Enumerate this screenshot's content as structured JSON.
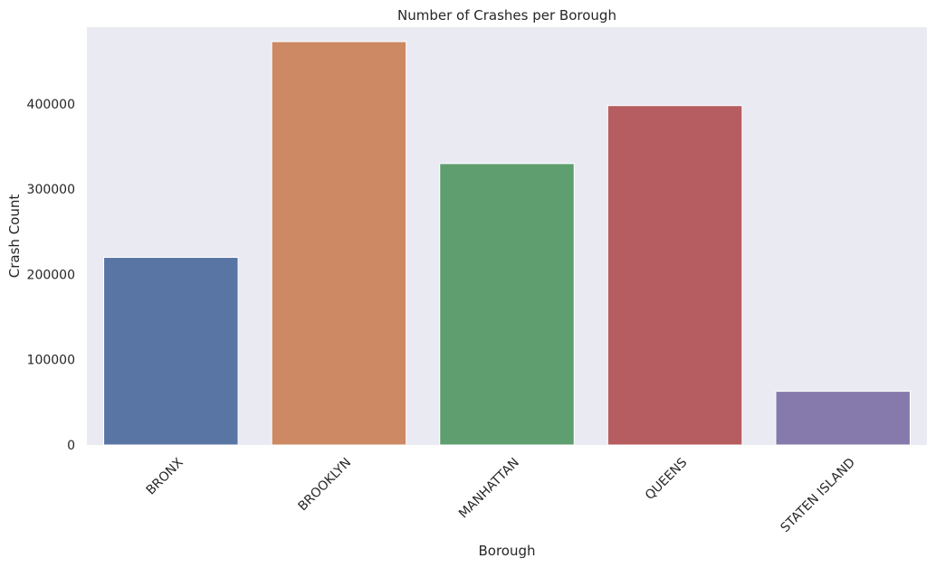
{
  "chart_data": {
    "type": "bar",
    "title": "Number of Crashes per Borough",
    "xlabel": "Borough",
    "ylabel": "Crash Count",
    "categories": [
      "BRONX",
      "BROOKLYN",
      "MANHATTAN",
      "QUEENS",
      "STATEN ISLAND"
    ],
    "values": [
      220000,
      473000,
      330000,
      398000,
      63000
    ],
    "colors": [
      "#5975a4",
      "#cc8963",
      "#5f9e6e",
      "#b55d60",
      "#857aab"
    ],
    "ylim": [
      0,
      490000
    ],
    "yticks": [
      0,
      100000,
      200000,
      300000,
      400000
    ],
    "ytick_labels": [
      "0",
      "100000",
      "200000",
      "300000",
      "400000"
    ],
    "xtick_rotation_deg": 45,
    "grid": false,
    "background": "#eaeaf2"
  }
}
